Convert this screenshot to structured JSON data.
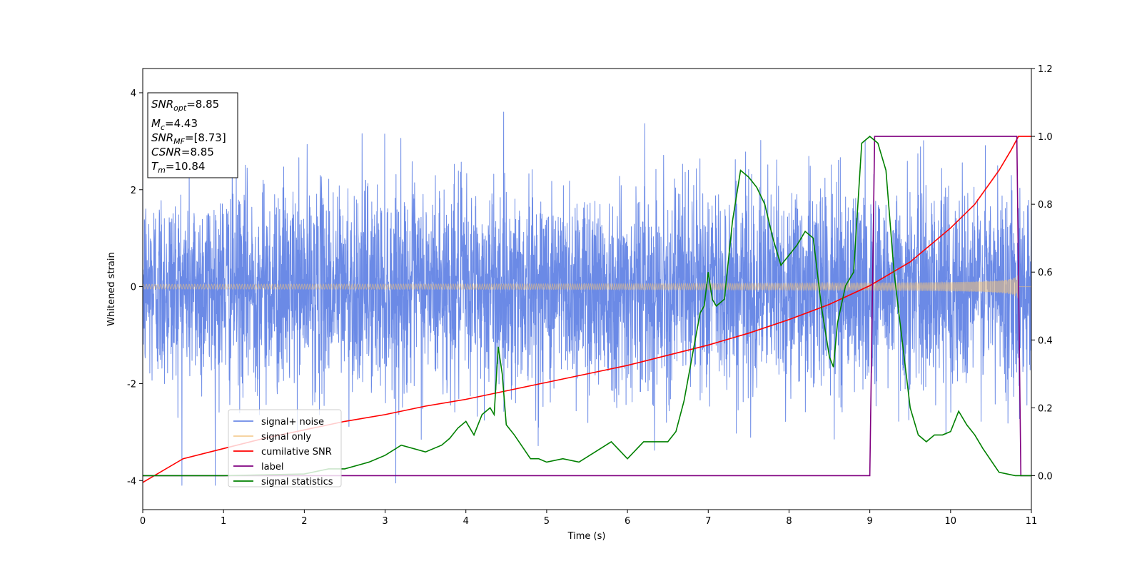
{
  "chart_data": {
    "type": "line",
    "xlabel": "Time (s)",
    "ylabel": "Whitened strain",
    "xlim": [
      0,
      11
    ],
    "ylim_left": [
      -4.6,
      4.5
    ],
    "ylim_right": [
      -0.1,
      1.2
    ],
    "x_ticks": [
      0,
      1,
      2,
      3,
      4,
      5,
      6,
      7,
      8,
      9,
      10,
      11
    ],
    "y_ticks_left": [
      -4,
      -2,
      0,
      2,
      4
    ],
    "y_ticks_right": [
      0.0,
      0.2,
      0.4,
      0.6,
      0.8,
      1.0,
      1.2
    ],
    "y_tick_labels_right": [
      "0.0",
      "0.2",
      "0.4",
      "0.6",
      "0.8",
      "1.0",
      "1.2"
    ],
    "grid": false,
    "legend_position": "lower-left",
    "series": [
      {
        "name": "signal+ noise",
        "axis": "left",
        "color": "#6b8ae6",
        "kind": "noise",
        "std": 1.05,
        "range": [
          -4.1,
          4.1
        ]
      },
      {
        "name": "signal only",
        "axis": "left",
        "color": "#f2c27a",
        "kind": "chirp",
        "amplitude_start": 0.05,
        "amplitude_end": 0.62,
        "merger_time": 10.84
      },
      {
        "name": "cumilative SNR",
        "axis": "right",
        "color": "#ff0000",
        "x": [
          0,
          0.5,
          1,
          1.5,
          2,
          2.5,
          3,
          3.5,
          4,
          4.5,
          5,
          5.5,
          6,
          6.5,
          7,
          7.5,
          8,
          8.5,
          9,
          9.5,
          10,
          10.3,
          10.6,
          10.75,
          10.84,
          11
        ],
        "values": [
          -0.02,
          0.05,
          0.08,
          0.11,
          0.135,
          0.16,
          0.18,
          0.205,
          0.225,
          0.25,
          0.275,
          0.3,
          0.325,
          0.355,
          0.385,
          0.42,
          0.46,
          0.505,
          0.56,
          0.63,
          0.73,
          0.8,
          0.9,
          0.96,
          1.0,
          1.0
        ]
      },
      {
        "name": "label",
        "axis": "right",
        "color": "#800080",
        "x": [
          0,
          9.0,
          9.06,
          10.82,
          10.87,
          11
        ],
        "values": [
          0,
          0,
          1,
          1,
          0,
          0
        ]
      },
      {
        "name": "signal statistics",
        "axis": "right",
        "color": "#008000",
        "x": [
          0,
          1.0,
          2.0,
          2.3,
          2.5,
          2.8,
          3.0,
          3.2,
          3.5,
          3.7,
          3.8,
          3.9,
          4.0,
          4.1,
          4.2,
          4.3,
          4.35,
          4.4,
          4.45,
          4.5,
          4.6,
          4.8,
          4.9,
          5.0,
          5.2,
          5.4,
          5.6,
          5.8,
          6.0,
          6.2,
          6.4,
          6.5,
          6.6,
          6.7,
          6.8,
          6.9,
          6.95,
          7.0,
          7.05,
          7.1,
          7.2,
          7.3,
          7.4,
          7.5,
          7.6,
          7.7,
          7.8,
          7.9,
          8.0,
          8.1,
          8.2,
          8.3,
          8.4,
          8.5,
          8.55,
          8.6,
          8.7,
          8.8,
          8.9,
          9.0,
          9.1,
          9.2,
          9.3,
          9.4,
          9.5,
          9.6,
          9.7,
          9.8,
          9.9,
          10.0,
          10.1,
          10.2,
          10.3,
          10.4,
          10.6,
          10.8,
          11.0
        ],
        "values": [
          0.0,
          0.0,
          0.005,
          0.02,
          0.02,
          0.04,
          0.06,
          0.09,
          0.07,
          0.09,
          0.11,
          0.14,
          0.16,
          0.12,
          0.18,
          0.2,
          0.18,
          0.38,
          0.3,
          0.15,
          0.12,
          0.05,
          0.05,
          0.04,
          0.05,
          0.04,
          0.07,
          0.1,
          0.05,
          0.1,
          0.1,
          0.1,
          0.13,
          0.22,
          0.35,
          0.48,
          0.5,
          0.6,
          0.52,
          0.5,
          0.52,
          0.75,
          0.9,
          0.88,
          0.85,
          0.8,
          0.7,
          0.62,
          0.65,
          0.68,
          0.72,
          0.7,
          0.5,
          0.35,
          0.32,
          0.45,
          0.56,
          0.6,
          0.98,
          1.0,
          0.98,
          0.9,
          0.6,
          0.4,
          0.2,
          0.12,
          0.1,
          0.12,
          0.12,
          0.13,
          0.19,
          0.15,
          0.12,
          0.08,
          0.01,
          0.0,
          0.0
        ]
      }
    ]
  },
  "annotation": {
    "snr_opt": {
      "var": "SNR",
      "sub": "opt",
      "value": "=8.85"
    },
    "mc": {
      "var": "M",
      "sub": "c",
      "value": "=4.43"
    },
    "snr_mf": {
      "var": "SNR",
      "sub": "MF",
      "value": "=[8.73]"
    },
    "csnr": {
      "var": "CSNR",
      "value": "=8.85"
    },
    "tm": {
      "var": "T",
      "sub": "m",
      "value": "=10.84"
    }
  }
}
